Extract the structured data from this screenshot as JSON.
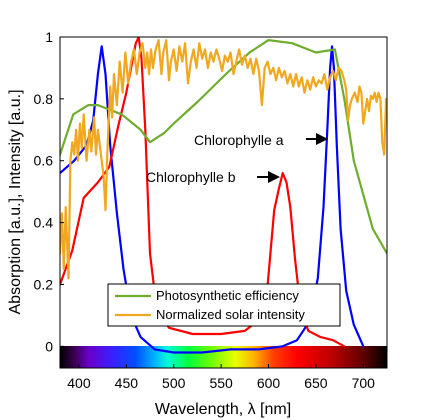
{
  "chart_data": {
    "type": "line",
    "xlabel": "Wavelength, λ [nm]",
    "ylabel": "Absorption [a.u.], Intensity [a.u.]",
    "xlim": [
      380,
      725
    ],
    "ylim": [
      -0.07,
      1.0
    ],
    "x_ticks": [
      400,
      450,
      500,
      550,
      600,
      650,
      700
    ],
    "y_ticks": [
      0,
      0.2,
      0.4,
      0.6,
      0.8,
      1
    ],
    "y_tick_labels": [
      "0",
      "0.2",
      "0.4",
      "0.6",
      "0.8",
      "1"
    ],
    "grid": false,
    "legend_position": "bottom-center",
    "spectrum_bar": {
      "range": [
        380,
        725
      ],
      "stops": [
        {
          "nm": 380,
          "color": "#000000"
        },
        {
          "nm": 395,
          "color": "#3a0050"
        },
        {
          "nm": 410,
          "color": "#6a00c8"
        },
        {
          "nm": 435,
          "color": "#3a1fff"
        },
        {
          "nm": 460,
          "color": "#0050ff"
        },
        {
          "nm": 480,
          "color": "#00b4ff"
        },
        {
          "nm": 495,
          "color": "#00ffd0"
        },
        {
          "nm": 515,
          "color": "#00ff40"
        },
        {
          "nm": 540,
          "color": "#70ff00"
        },
        {
          "nm": 565,
          "color": "#e8ff00"
        },
        {
          "nm": 585,
          "color": "#ffb000"
        },
        {
          "nm": 605,
          "color": "#ff4000"
        },
        {
          "nm": 630,
          "color": "#ff0000"
        },
        {
          "nm": 665,
          "color": "#c00000"
        },
        {
          "nm": 700,
          "color": "#600000"
        },
        {
          "nm": 725,
          "color": "#000000"
        }
      ]
    },
    "series": [
      {
        "name": "Chlorophylle a",
        "color": "#0000ff",
        "in_legend": false,
        "points": [
          [
            380,
            0.56
          ],
          [
            395,
            0.6
          ],
          [
            408,
            0.65
          ],
          [
            415,
            0.73
          ],
          [
            420,
            0.88
          ],
          [
            424,
            0.97
          ],
          [
            428,
            0.88
          ],
          [
            433,
            0.65
          ],
          [
            440,
            0.43
          ],
          [
            447,
            0.25
          ],
          [
            455,
            0.1
          ],
          [
            465,
            0.03
          ],
          [
            480,
            -0.01
          ],
          [
            500,
            -0.02
          ],
          [
            530,
            -0.02
          ],
          [
            560,
            -0.01
          ],
          [
            590,
            -0.01
          ],
          [
            615,
            0.0
          ],
          [
            630,
            0.02
          ],
          [
            643,
            0.08
          ],
          [
            652,
            0.22
          ],
          [
            658,
            0.45
          ],
          [
            662,
            0.7
          ],
          [
            665,
            0.9
          ],
          [
            667,
            0.97
          ],
          [
            669,
            0.9
          ],
          [
            672,
            0.65
          ],
          [
            676,
            0.38
          ],
          [
            682,
            0.18
          ],
          [
            690,
            0.07
          ],
          [
            700,
            0.0
          ]
        ]
      },
      {
        "name": "Chlorophylle b",
        "color": "#ff0000",
        "in_legend": false,
        "points": [
          [
            380,
            0.2
          ],
          [
            393,
            0.31
          ],
          [
            405,
            0.48
          ],
          [
            420,
            0.53
          ],
          [
            432,
            0.58
          ],
          [
            442,
            0.72
          ],
          [
            450,
            0.82
          ],
          [
            455,
            0.9
          ],
          [
            460,
            0.98
          ],
          [
            463,
            1.0
          ],
          [
            466,
            0.93
          ],
          [
            470,
            0.7
          ],
          [
            475,
            0.3
          ],
          [
            482,
            0.12
          ],
          [
            495,
            0.06
          ],
          [
            520,
            0.04
          ],
          [
            550,
            0.04
          ],
          [
            575,
            0.05
          ],
          [
            592,
            0.09
          ],
          [
            598,
            0.16
          ],
          [
            602,
            0.3
          ],
          [
            606,
            0.44
          ],
          [
            611,
            0.51
          ],
          [
            615,
            0.56
          ],
          [
            619,
            0.53
          ],
          [
            623,
            0.45
          ],
          [
            628,
            0.28
          ],
          [
            634,
            0.12
          ],
          [
            642,
            0.05
          ],
          [
            655,
            0.03
          ],
          [
            668,
            0.02
          ],
          [
            680,
            0.0
          ]
        ]
      },
      {
        "name": "Photosynthetic efficiency",
        "color": "#6fad2f",
        "in_legend": true,
        "points": [
          [
            380,
            0.62
          ],
          [
            394,
            0.75
          ],
          [
            410,
            0.78
          ],
          [
            420,
            0.78
          ],
          [
            445,
            0.75
          ],
          [
            465,
            0.7
          ],
          [
            475,
            0.66
          ],
          [
            490,
            0.69
          ],
          [
            500,
            0.72
          ],
          [
            525,
            0.79
          ],
          [
            555,
            0.88
          ],
          [
            580,
            0.95
          ],
          [
            600,
            0.99
          ],
          [
            625,
            0.98
          ],
          [
            650,
            0.95
          ],
          [
            670,
            0.96
          ],
          [
            680,
            0.8
          ],
          [
            690,
            0.6
          ],
          [
            710,
            0.38
          ],
          [
            725,
            0.3
          ]
        ]
      },
      {
        "name": "Normalized solar intensity",
        "color": "#f0a820",
        "in_legend": true,
        "points": [
          [
            380,
            0.3
          ],
          [
            382,
            0.43
          ],
          [
            384,
            0.25
          ],
          [
            386,
            0.45
          ],
          [
            389,
            0.22
          ],
          [
            391,
            0.6
          ],
          [
            393,
            0.66
          ],
          [
            395,
            0.62
          ],
          [
            397,
            0.7
          ],
          [
            399,
            0.6
          ],
          [
            401,
            0.72
          ],
          [
            403,
            0.64
          ],
          [
            405,
            0.75
          ],
          [
            408,
            0.6
          ],
          [
            411,
            0.7
          ],
          [
            413,
            0.63
          ],
          [
            416,
            0.74
          ],
          [
            418,
            0.62
          ],
          [
            420,
            0.7
          ],
          [
            424,
            0.6
          ],
          [
            426,
            0.55
          ],
          [
            428,
            0.44
          ],
          [
            430,
            0.63
          ],
          [
            433,
            0.84
          ],
          [
            435,
            0.74
          ],
          [
            437,
            0.88
          ],
          [
            440,
            0.78
          ],
          [
            443,
            0.92
          ],
          [
            446,
            0.82
          ],
          [
            449,
            0.95
          ],
          [
            452,
            0.85
          ],
          [
            455,
            0.92
          ],
          [
            458,
            0.96
          ],
          [
            461,
            0.88
          ],
          [
            464,
            0.95
          ],
          [
            467,
            0.98
          ],
          [
            470,
            0.9
          ],
          [
            472,
            0.95
          ],
          [
            474,
            0.88
          ],
          [
            476,
            0.96
          ],
          [
            478,
            0.9
          ],
          [
            481,
            0.96
          ],
          [
            484,
            0.99
          ],
          [
            487,
            0.88
          ],
          [
            489,
            0.95
          ],
          [
            492,
            0.99
          ],
          [
            495,
            0.86
          ],
          [
            497,
            0.92
          ],
          [
            500,
            0.96
          ],
          [
            503,
            0.89
          ],
          [
            506,
            0.97
          ],
          [
            509,
            0.92
          ],
          [
            512,
            0.98
          ],
          [
            515,
            0.85
          ],
          [
            518,
            0.92
          ],
          [
            521,
            0.96
          ],
          [
            524,
            0.9
          ],
          [
            527,
            0.98
          ],
          [
            530,
            0.93
          ],
          [
            533,
            0.96
          ],
          [
            536,
            0.9
          ],
          [
            539,
            0.95
          ],
          [
            542,
            0.92
          ],
          [
            545,
            0.96
          ],
          [
            548,
            0.93
          ],
          [
            551,
            0.89
          ],
          [
            554,
            0.94
          ],
          [
            557,
            0.92
          ],
          [
            560,
            0.95
          ],
          [
            563,
            0.88
          ],
          [
            566,
            0.92
          ],
          [
            569,
            0.96
          ],
          [
            572,
            0.91
          ],
          [
            575,
            0.94
          ],
          [
            578,
            0.9
          ],
          [
            581,
            0.93
          ],
          [
            584,
            0.88
          ],
          [
            587,
            0.93
          ],
          [
            590,
            0.89
          ],
          [
            593,
            0.78
          ],
          [
            596,
            0.9
          ],
          [
            599,
            0.92
          ],
          [
            602,
            0.88
          ],
          [
            605,
            0.9
          ],
          [
            608,
            0.86
          ],
          [
            611,
            0.9
          ],
          [
            614,
            0.87
          ],
          [
            617,
            0.89
          ],
          [
            620,
            0.85
          ],
          [
            623,
            0.88
          ],
          [
            626,
            0.84
          ],
          [
            629,
            0.88
          ],
          [
            632,
            0.84
          ],
          [
            635,
            0.87
          ],
          [
            638,
            0.82
          ],
          [
            641,
            0.86
          ],
          [
            644,
            0.83
          ],
          [
            647,
            0.87
          ],
          [
            650,
            0.84
          ],
          [
            653,
            0.86
          ],
          [
            656,
            0.85
          ],
          [
            659,
            0.88
          ],
          [
            662,
            0.83
          ],
          [
            665,
            0.87
          ],
          [
            668,
            0.89
          ],
          [
            671,
            0.86
          ],
          [
            674,
            0.9
          ],
          [
            677,
            0.89
          ],
          [
            680,
            0.86
          ],
          [
            682,
            0.83
          ],
          [
            684,
            0.73
          ],
          [
            686,
            0.78
          ],
          [
            688,
            0.8
          ],
          [
            691,
            0.82
          ],
          [
            694,
            0.79
          ],
          [
            696,
            0.84
          ],
          [
            698,
            0.82
          ],
          [
            700,
            0.72
          ],
          [
            702,
            0.76
          ],
          [
            704,
            0.8
          ],
          [
            706,
            0.76
          ],
          [
            708,
            0.81
          ],
          [
            710,
            0.8
          ],
          [
            712,
            0.82
          ],
          [
            714,
            0.79
          ],
          [
            716,
            0.82
          ],
          [
            718,
            0.8
          ],
          [
            720,
            0.66
          ],
          [
            722,
            0.62
          ],
          [
            724,
            0.8
          ]
        ]
      }
    ],
    "annotations": [
      {
        "text": "Chlorophylle a",
        "target": [
          661,
          0.75
        ]
      },
      {
        "text": "Chlorophylle b",
        "target": [
          613,
          0.56
        ]
      }
    ],
    "legend_entries": [
      "Photosynthetic efficiency",
      "Normalized solar intensity"
    ]
  }
}
